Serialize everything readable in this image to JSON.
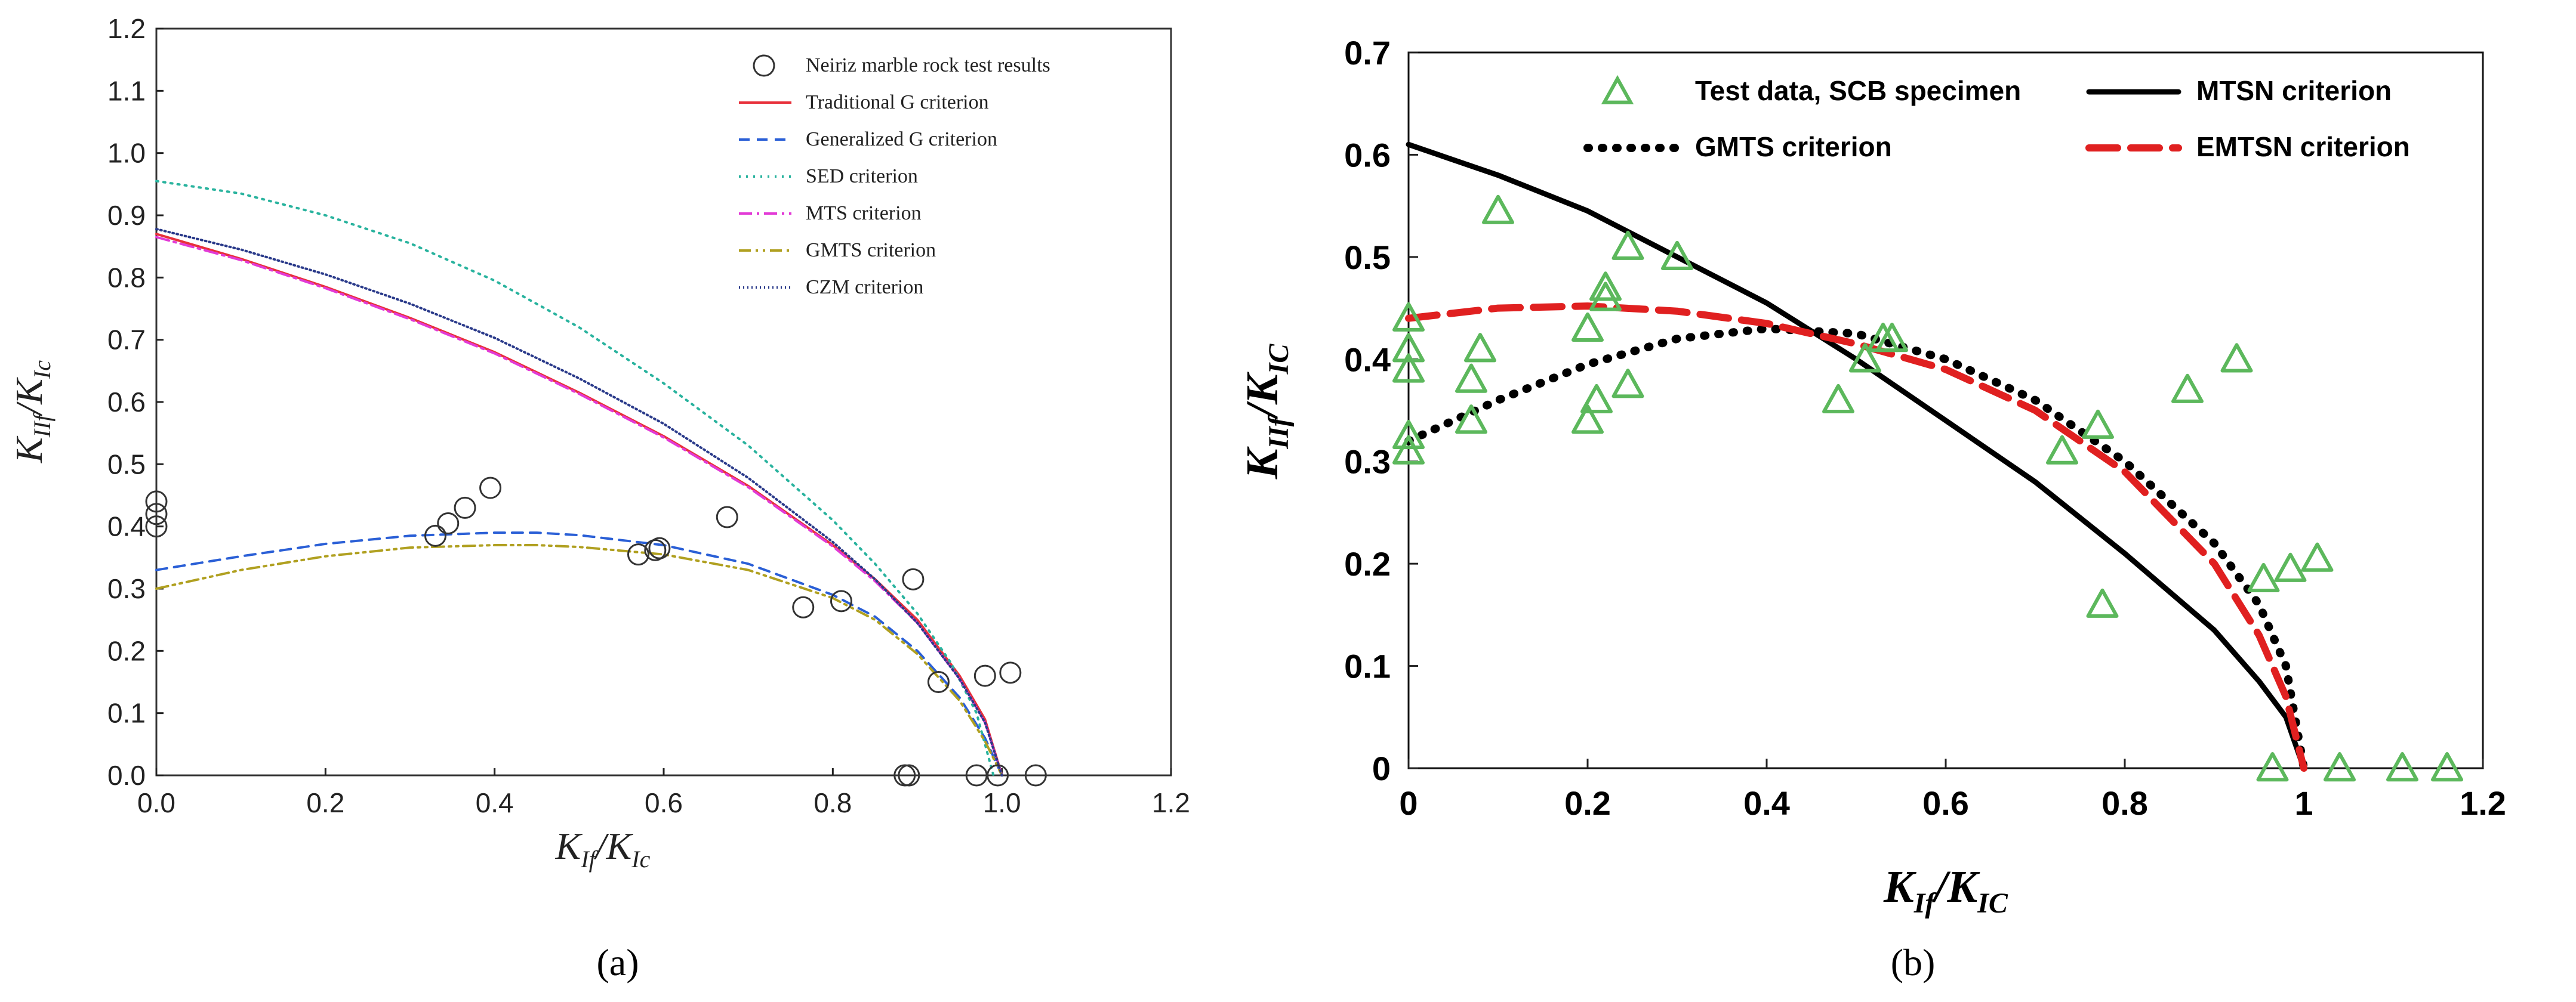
{
  "chart_data": [
    {
      "type": "scatter",
      "title": "",
      "caption": "(a)",
      "xlabel": "K_If / K_Ic",
      "xlabel_main": "K",
      "xlabel_sub": "If",
      "xlabel_sep": "/K",
      "xlabel_sub2": "Ic",
      "ylabel_main": "K",
      "ylabel_sub": "IIf",
      "ylabel_sep": "/K",
      "ylabel_sub2": "Ic",
      "xlim": [
        0,
        1.2
      ],
      "ylim": [
        0,
        1.2
      ],
      "xticks": [
        "0.0",
        "0.2",
        "0.4",
        "0.6",
        "0.8",
        "1.0",
        "1.2"
      ],
      "yticks": [
        "0.0",
        "0.1",
        "0.2",
        "0.3",
        "0.4",
        "0.5",
        "0.6",
        "0.7",
        "0.8",
        "0.9",
        "1.0",
        "1.1",
        "1.2"
      ],
      "series": [
        {
          "name": "Neiriz marble rock test results",
          "kind": "points",
          "color": "#333333",
          "points": [
            [
              0.0,
              0.44
            ],
            [
              0.0,
              0.42
            ],
            [
              0.0,
              0.4
            ],
            [
              0.33,
              0.385
            ],
            [
              0.345,
              0.405
            ],
            [
              0.365,
              0.43
            ],
            [
              0.395,
              0.462
            ],
            [
              0.57,
              0.355
            ],
            [
              0.59,
              0.362
            ],
            [
              0.595,
              0.365
            ],
            [
              0.675,
              0.415
            ],
            [
              0.765,
              0.27
            ],
            [
              0.81,
              0.28
            ],
            [
              0.885,
              0.0
            ],
            [
              0.89,
              0.0
            ],
            [
              0.895,
              0.315
            ],
            [
              0.925,
              0.15
            ],
            [
              0.97,
              0.0
            ],
            [
              0.98,
              0.16
            ],
            [
              0.995,
              0.0
            ],
            [
              1.01,
              0.165
            ],
            [
              1.04,
              0.0
            ]
          ]
        },
        {
          "name": "Traditional G criterion",
          "kind": "line",
          "color": "#e8303a",
          "dash": "",
          "points": [
            [
              0.0,
              0.87
            ],
            [
              0.1,
              0.83
            ],
            [
              0.2,
              0.785
            ],
            [
              0.3,
              0.735
            ],
            [
              0.4,
              0.68
            ],
            [
              0.5,
              0.615
            ],
            [
              0.6,
              0.545
            ],
            [
              0.7,
              0.465
            ],
            [
              0.8,
              0.37
            ],
            [
              0.85,
              0.315
            ],
            [
              0.9,
              0.25
            ],
            [
              0.95,
              0.16
            ],
            [
              0.98,
              0.09
            ],
            [
              1.0,
              0.0
            ]
          ]
        },
        {
          "name": "Generalized G criterion",
          "kind": "line",
          "color": "#2a5fd6",
          "dash": "18 12",
          "points": [
            [
              0.0,
              0.33
            ],
            [
              0.1,
              0.352
            ],
            [
              0.2,
              0.372
            ],
            [
              0.3,
              0.385
            ],
            [
              0.4,
              0.39
            ],
            [
              0.45,
              0.39
            ],
            [
              0.5,
              0.386
            ],
            [
              0.6,
              0.37
            ],
            [
              0.7,
              0.34
            ],
            [
              0.8,
              0.29
            ],
            [
              0.85,
              0.255
            ],
            [
              0.9,
              0.2
            ],
            [
              0.95,
              0.125
            ],
            [
              0.98,
              0.06
            ],
            [
              1.0,
              0.0
            ]
          ]
        },
        {
          "name": "SED criterion",
          "kind": "line",
          "color": "#29b39e",
          "dash": "3 9",
          "points": [
            [
              0.0,
              0.955
            ],
            [
              0.1,
              0.935
            ],
            [
              0.2,
              0.9
            ],
            [
              0.3,
              0.855
            ],
            [
              0.4,
              0.795
            ],
            [
              0.5,
              0.72
            ],
            [
              0.6,
              0.63
            ],
            [
              0.7,
              0.53
            ],
            [
              0.8,
              0.41
            ],
            [
              0.85,
              0.34
            ],
            [
              0.9,
              0.26
            ],
            [
              0.94,
              0.18
            ],
            [
              0.97,
              0.1
            ],
            [
              0.99,
              0.0
            ]
          ]
        },
        {
          "name": "MTS criterion",
          "kind": "line",
          "color": "#e23ad6",
          "dash": "22 8 4 8",
          "points": [
            [
              0.0,
              0.865
            ],
            [
              0.1,
              0.828
            ],
            [
              0.2,
              0.783
            ],
            [
              0.3,
              0.733
            ],
            [
              0.4,
              0.678
            ],
            [
              0.5,
              0.613
            ],
            [
              0.6,
              0.543
            ],
            [
              0.7,
              0.463
            ],
            [
              0.8,
              0.368
            ],
            [
              0.85,
              0.312
            ],
            [
              0.9,
              0.245
            ],
            [
              0.95,
              0.155
            ],
            [
              0.98,
              0.085
            ],
            [
              1.0,
              0.0
            ]
          ]
        },
        {
          "name": "GMTS criterion",
          "kind": "line",
          "color": "#b0a020",
          "dash": "20 8 4 8 4 8",
          "points": [
            [
              0.0,
              0.3
            ],
            [
              0.1,
              0.33
            ],
            [
              0.2,
              0.352
            ],
            [
              0.3,
              0.366
            ],
            [
              0.4,
              0.37
            ],
            [
              0.45,
              0.37
            ],
            [
              0.5,
              0.367
            ],
            [
              0.6,
              0.355
            ],
            [
              0.7,
              0.33
            ],
            [
              0.8,
              0.285
            ],
            [
              0.85,
              0.25
            ],
            [
              0.9,
              0.195
            ],
            [
              0.95,
              0.12
            ],
            [
              0.98,
              0.055
            ],
            [
              1.0,
              0.0
            ]
          ]
        },
        {
          "name": "CZM criterion",
          "kind": "line",
          "color": "#2a3a8a",
          "dash": "2 5",
          "points": [
            [
              0.0,
              0.878
            ],
            [
              0.1,
              0.845
            ],
            [
              0.2,
              0.805
            ],
            [
              0.3,
              0.758
            ],
            [
              0.4,
              0.703
            ],
            [
              0.5,
              0.638
            ],
            [
              0.6,
              0.565
            ],
            [
              0.7,
              0.478
            ],
            [
              0.8,
              0.375
            ],
            [
              0.85,
              0.315
            ],
            [
              0.9,
              0.245
            ],
            [
              0.95,
              0.155
            ],
            [
              0.98,
              0.085
            ],
            [
              1.0,
              0.0
            ]
          ]
        }
      ]
    },
    {
      "type": "scatter",
      "title": "",
      "caption": "(b)",
      "xlabel": "K_If / K_IC",
      "xlabel_main": "K",
      "xlabel_sub": "If",
      "xlabel_sep": "/K",
      "xlabel_sub2": "IC",
      "ylabel_main": "K",
      "ylabel_sub": "IIf",
      "ylabel_sep": "/K",
      "ylabel_sub2": "IC",
      "xlim": [
        0,
        1.2
      ],
      "ylim": [
        0,
        0.7
      ],
      "xticks": [
        "0",
        "0.2",
        "0.4",
        "0.6",
        "0.8",
        "1",
        "1.2"
      ],
      "yticks": [
        "0",
        "0.1",
        "0.2",
        "0.3",
        "0.4",
        "0.5",
        "0.6",
        "0.7"
      ],
      "series": [
        {
          "name": "Test data, SCB specimen",
          "kind": "triangles",
          "color": "#5cb85c",
          "points": [
            [
              0.0,
              0.44
            ],
            [
              0.0,
              0.41
            ],
            [
              0.0,
              0.39
            ],
            [
              0.0,
              0.325
            ],
            [
              0.0,
              0.31
            ],
            [
              0.07,
              0.34
            ],
            [
              0.07,
              0.38
            ],
            [
              0.08,
              0.41
            ],
            [
              0.1,
              0.545
            ],
            [
              0.2,
              0.34
            ],
            [
              0.2,
              0.43
            ],
            [
              0.21,
              0.36
            ],
            [
              0.22,
              0.47
            ],
            [
              0.22,
              0.46
            ],
            [
              0.245,
              0.51
            ],
            [
              0.245,
              0.375
            ],
            [
              0.3,
              0.5
            ],
            [
              0.48,
              0.36
            ],
            [
              0.51,
              0.4
            ],
            [
              0.53,
              0.42
            ],
            [
              0.54,
              0.42
            ],
            [
              0.73,
              0.31
            ],
            [
              0.77,
              0.335
            ],
            [
              0.775,
              0.16
            ],
            [
              0.87,
              0.37
            ],
            [
              0.925,
              0.4
            ],
            [
              0.955,
              0.185
            ],
            [
              0.965,
              0.0
            ],
            [
              0.985,
              0.195
            ],
            [
              1.015,
              0.205
            ],
            [
              1.04,
              0.0
            ],
            [
              1.11,
              0.0
            ],
            [
              1.16,
              0.0
            ]
          ]
        },
        {
          "name": "MTSN criterion",
          "kind": "line",
          "color": "#000000",
          "dash": "",
          "points": [
            [
              0.0,
              0.61
            ],
            [
              0.1,
              0.58
            ],
            [
              0.2,
              0.545
            ],
            [
              0.3,
              0.5
            ],
            [
              0.4,
              0.455
            ],
            [
              0.5,
              0.4
            ],
            [
              0.6,
              0.34
            ],
            [
              0.7,
              0.28
            ],
            [
              0.8,
              0.21
            ],
            [
              0.9,
              0.135
            ],
            [
              0.95,
              0.085
            ],
            [
              0.98,
              0.05
            ],
            [
              1.0,
              0.0
            ]
          ]
        },
        {
          "name": "GMTS criterion",
          "kind": "line",
          "color": "#000000",
          "dash": "2 22",
          "points": [
            [
              0.0,
              0.32
            ],
            [
              0.1,
              0.36
            ],
            [
              0.2,
              0.395
            ],
            [
              0.3,
              0.42
            ],
            [
              0.4,
              0.43
            ],
            [
              0.5,
              0.425
            ],
            [
              0.6,
              0.4
            ],
            [
              0.7,
              0.36
            ],
            [
              0.8,
              0.3
            ],
            [
              0.9,
              0.22
            ],
            [
              0.95,
              0.16
            ],
            [
              0.98,
              0.1
            ],
            [
              1.0,
              0.0
            ]
          ]
        },
        {
          "name": "EMTSN criterion",
          "kind": "line",
          "color": "#e02020",
          "dash": "48 22",
          "points": [
            [
              0.0,
              0.44
            ],
            [
              0.1,
              0.45
            ],
            [
              0.2,
              0.452
            ],
            [
              0.3,
              0.447
            ],
            [
              0.4,
              0.435
            ],
            [
              0.5,
              0.415
            ],
            [
              0.6,
              0.39
            ],
            [
              0.7,
              0.35
            ],
            [
              0.8,
              0.29
            ],
            [
              0.9,
              0.2
            ],
            [
              0.95,
              0.13
            ],
            [
              0.98,
              0.07
            ],
            [
              1.0,
              0.0
            ]
          ]
        }
      ]
    }
  ]
}
